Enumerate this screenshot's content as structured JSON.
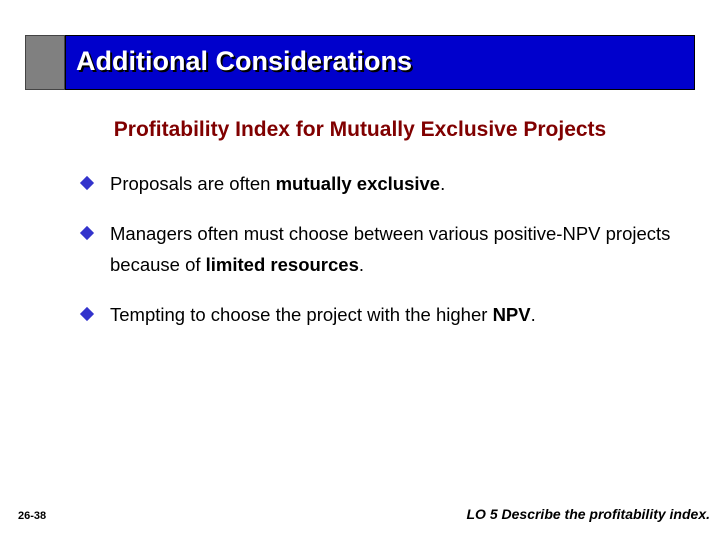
{
  "header": {
    "title": "Additional Considerations"
  },
  "subtitle": "Profitability Index for Mutually Exclusive Projects",
  "bullets": [
    {
      "segments": [
        {
          "text": "Proposals are often ",
          "bold": false
        },
        {
          "text": "mutually exclusive",
          "bold": true
        },
        {
          "text": ".",
          "bold": false
        }
      ]
    },
    {
      "segments": [
        {
          "text": "Managers often must choose between various positive-NPV projects because of ",
          "bold": false
        },
        {
          "text": "limited resources",
          "bold": true
        },
        {
          "text": ".",
          "bold": false
        }
      ]
    },
    {
      "segments": [
        {
          "text": "Tempting to choose the project with the higher ",
          "bold": false
        },
        {
          "text": "NPV",
          "bold": true
        },
        {
          "text": ".",
          "bold": false
        }
      ]
    }
  ],
  "footer": {
    "page": "26-38",
    "objective": "LO 5  Describe the profitability index."
  }
}
